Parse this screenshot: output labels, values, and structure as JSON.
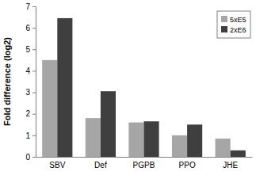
{
  "chart_data": {
    "type": "bar",
    "categories": [
      "SBV",
      "Def",
      "PGPB",
      "PPO",
      "JHE"
    ],
    "series": [
      {
        "name": "5xE5",
        "color": "#a6a6a6",
        "values": [
          4.5,
          1.8,
          1.6,
          1.0,
          0.85
        ]
      },
      {
        "name": "2xE6",
        "color": "#3f3f3f",
        "values": [
          6.45,
          3.05,
          1.65,
          1.5,
          0.3
        ]
      }
    ],
    "y_label": "Fold difference (log2)",
    "ylim": [
      0,
      7
    ],
    "yticks": [
      0,
      1,
      2,
      3,
      4,
      5,
      6,
      7
    ],
    "grid": false,
    "legend": "top-right"
  }
}
